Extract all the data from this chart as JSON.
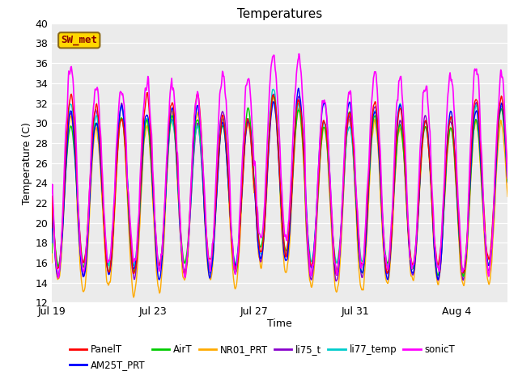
{
  "title": "Temperatures",
  "xlabel": "Time",
  "ylabel": "Temperature (C)",
  "ylim": [
    12,
    40
  ],
  "yticks": [
    12,
    14,
    16,
    18,
    20,
    22,
    24,
    26,
    28,
    30,
    32,
    34,
    36,
    38,
    40
  ],
  "xtick_labels": [
    "Jul 19",
    "Jul 23",
    "Jul 27",
    "Jul 31",
    "Aug 4"
  ],
  "xtick_positions": [
    0,
    4,
    8,
    12,
    16
  ],
  "n_days": 18,
  "series": {
    "PanelT": {
      "color": "#ff0000",
      "lw": 1.0,
      "zorder": 5
    },
    "AM25T_PRT": {
      "color": "#0000ff",
      "lw": 1.0,
      "zorder": 4
    },
    "AirT": {
      "color": "#00cc00",
      "lw": 1.0,
      "zorder": 3
    },
    "NR01_PRT": {
      "color": "#ffaa00",
      "lw": 1.0,
      "zorder": 2
    },
    "li75_t": {
      "color": "#8800cc",
      "lw": 1.0,
      "zorder": 2
    },
    "li77_temp": {
      "color": "#00cccc",
      "lw": 1.0,
      "zorder": 2
    },
    "sonicT": {
      "color": "#ff00ff",
      "lw": 1.2,
      "zorder": 6
    }
  },
  "legend_order": [
    "PanelT",
    "AM25T_PRT",
    "AirT",
    "NR01_PRT",
    "li75_t",
    "li77_temp",
    "sonicT"
  ],
  "annotation_text": "SW_met",
  "fig_bg_color": "#ffffff",
  "plot_bg_color": "#ebebeb"
}
